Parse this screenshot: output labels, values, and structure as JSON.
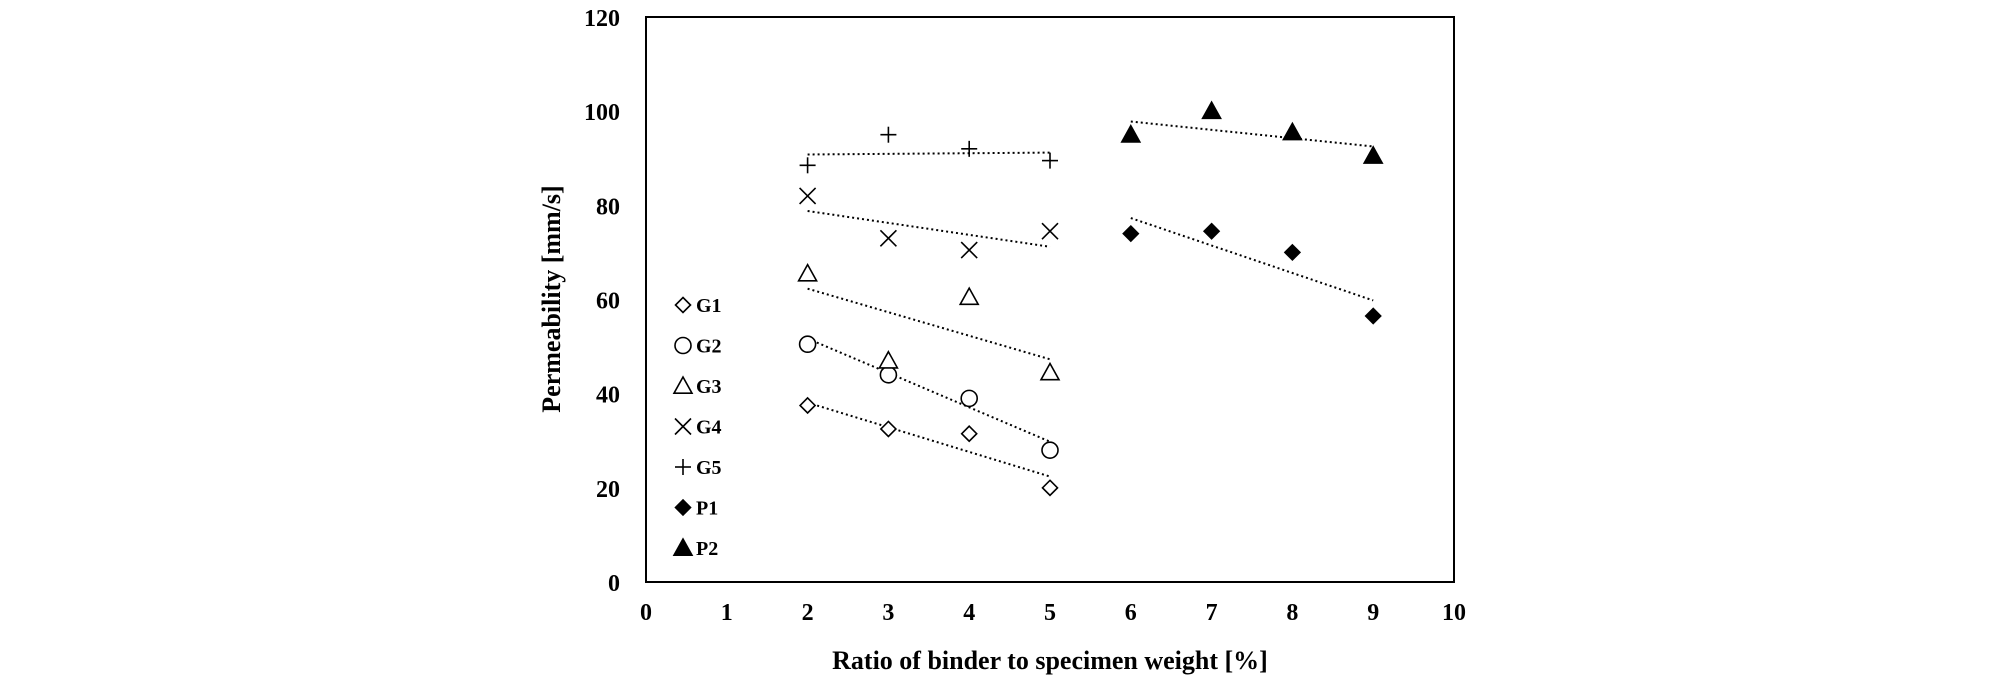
{
  "chart_data": {
    "type": "scatter",
    "title": "",
    "xlabel": "Ratio of binder to specimen weight [%]",
    "ylabel": "Permeability [mm/s]",
    "xlim": [
      0,
      10
    ],
    "ylim": [
      0,
      120
    ],
    "xticks": [
      "0",
      "1",
      "2",
      "3",
      "4",
      "5",
      "6",
      "7",
      "8",
      "9",
      "10"
    ],
    "yticks": [
      "0",
      "20",
      "40",
      "60",
      "80",
      "100",
      "120"
    ],
    "grid": false,
    "legend_position": "left",
    "trendlines": "linear, dotted",
    "series": [
      {
        "name": "G1",
        "marker": "diamond-open",
        "x": [
          2,
          3,
          4,
          5
        ],
        "y": [
          37.5,
          32.5,
          31.5,
          20
        ],
        "trend": [
          [
            2,
            38.1
          ],
          [
            5,
            22.4
          ]
        ]
      },
      {
        "name": "G2",
        "marker": "circle-open",
        "x": [
          2,
          3,
          4,
          5
        ],
        "y": [
          50.5,
          44,
          39,
          28
        ],
        "trend": [
          [
            2,
            51.7
          ],
          [
            5,
            29.8
          ]
        ]
      },
      {
        "name": "G3",
        "marker": "triangle-open",
        "x": [
          2,
          3,
          4,
          5
        ],
        "y": [
          65.5,
          47,
          60.5,
          44.5
        ],
        "trend": [
          [
            2,
            62.3
          ],
          [
            5,
            47.3
          ]
        ]
      },
      {
        "name": "G4",
        "marker": "x",
        "x": [
          2,
          3,
          4,
          5
        ],
        "y": [
          82,
          73,
          70.5,
          74.5
        ],
        "trend": [
          [
            2,
            78.8
          ],
          [
            5,
            71.2
          ]
        ]
      },
      {
        "name": "G5",
        "marker": "plus",
        "x": [
          2,
          3,
          4,
          5
        ],
        "y": [
          88.5,
          95,
          92,
          89.5
        ],
        "trend": [
          [
            2,
            90.8
          ],
          [
            5,
            91.2
          ]
        ]
      },
      {
        "name": "P1",
        "marker": "diamond-filled",
        "x": [
          6,
          7,
          8,
          9
        ],
        "y": [
          74,
          74.5,
          70,
          56.5
        ],
        "trend": [
          [
            6,
            77.3
          ],
          [
            9,
            59.8
          ]
        ]
      },
      {
        "name": "P2",
        "marker": "triangle-filled",
        "x": [
          6,
          7,
          8,
          9
        ],
        "y": [
          95,
          100,
          95.5,
          90.5
        ],
        "trend": [
          [
            6,
            97.8
          ],
          [
            9,
            92.5
          ]
        ]
      }
    ]
  }
}
